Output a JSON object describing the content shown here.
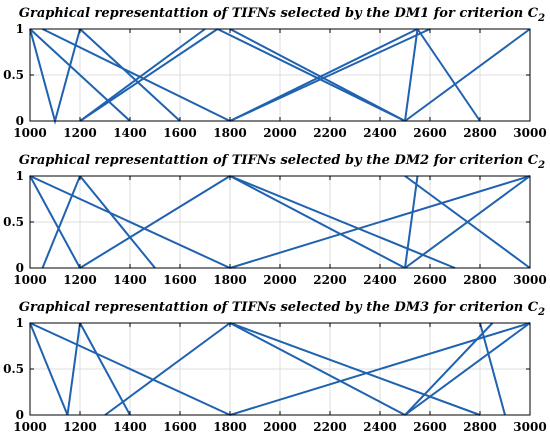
{
  "chart_data": [
    {
      "type": "line",
      "title": "Graphical representattion of TIFNs selected by the DM1 for criterion C",
      "title_subscript": "2",
      "xlim": [
        1000,
        3000
      ],
      "ylim": [
        0,
        1
      ],
      "xticks": [
        1000,
        1200,
        1400,
        1600,
        1800,
        2000,
        2200,
        2400,
        2600,
        2800,
        3000
      ],
      "yticks": [
        0,
        0.5,
        1
      ],
      "grid": true,
      "line_color": "#1f62b0",
      "series": [
        {
          "x": [
            1000,
            1100,
            1200
          ],
          "y": [
            1,
            0,
            1
          ]
        },
        {
          "x": [
            1200,
            1700
          ],
          "y": [
            0,
            1
          ]
        },
        {
          "x": [
            1200,
            1600
          ],
          "y": [
            1,
            0
          ]
        },
        {
          "x": [
            1050,
            1800
          ],
          "y": [
            1,
            0
          ]
        },
        {
          "x": [
            1200,
            1750
          ],
          "y": [
            0,
            1
          ]
        },
        {
          "x": [
            1000,
            1400
          ],
          "y": [
            1,
            0
          ]
        },
        {
          "x": [
            1800,
            2600
          ],
          "y": [
            0,
            1
          ]
        },
        {
          "x": [
            1800,
            2500
          ],
          "y": [
            1,
            0
          ]
        },
        {
          "x": [
            1750,
            2500
          ],
          "y": [
            1,
            0
          ]
        },
        {
          "x": [
            2500,
            3000
          ],
          "y": [
            0,
            1
          ]
        },
        {
          "x": [
            1800,
            2550
          ],
          "y": [
            0,
            1
          ]
        },
        {
          "x": [
            2550,
            2800
          ],
          "y": [
            1,
            0
          ]
        },
        {
          "x": [
            2500,
            2550
          ],
          "y": [
            0,
            1
          ]
        }
      ]
    },
    {
      "type": "line",
      "title": "Graphical representattion of TIFNs selected by the DM2 for criterion C",
      "title_subscript": "2",
      "xlim": [
        1000,
        3000
      ],
      "ylim": [
        0,
        1
      ],
      "xticks": [
        1000,
        1200,
        1400,
        1600,
        1800,
        2000,
        2200,
        2400,
        2600,
        2800,
        3000
      ],
      "yticks": [
        0,
        0.5,
        1
      ],
      "grid": true,
      "line_color": "#1f62b0",
      "series": [
        {
          "x": [
            1000,
            1200
          ],
          "y": [
            1,
            0
          ]
        },
        {
          "x": [
            1050,
            1200
          ],
          "y": [
            0,
            1
          ]
        },
        {
          "x": [
            1200,
            1500
          ],
          "y": [
            1,
            0
          ]
        },
        {
          "x": [
            1000,
            1800
          ],
          "y": [
            1,
            0
          ]
        },
        {
          "x": [
            1200,
            1800
          ],
          "y": [
            0,
            1
          ]
        },
        {
          "x": [
            1800,
            2500
          ],
          "y": [
            1,
            0
          ]
        },
        {
          "x": [
            1800,
            2700
          ],
          "y": [
            1,
            0
          ]
        },
        {
          "x": [
            1800,
            3000
          ],
          "y": [
            0,
            1
          ]
        },
        {
          "x": [
            2500,
            3000
          ],
          "y": [
            0,
            1
          ]
        },
        {
          "x": [
            2500,
            3000
          ],
          "y": [
            1,
            0
          ]
        },
        {
          "x": [
            2500,
            2550
          ],
          "y": [
            0,
            1
          ]
        }
      ]
    },
    {
      "type": "line",
      "title": "Graphical representattion of TIFNs selected by the DM3 for criterion C",
      "title_subscript": "2",
      "xlim": [
        1000,
        3000
      ],
      "ylim": [
        0,
        1
      ],
      "xticks": [
        1000,
        1200,
        1400,
        1600,
        1800,
        2000,
        2200,
        2400,
        2600,
        2800,
        3000
      ],
      "yticks": [
        0,
        0.5,
        1
      ],
      "grid": true,
      "line_color": "#1f62b0",
      "series": [
        {
          "x": [
            1000,
            1150
          ],
          "y": [
            1,
            0
          ]
        },
        {
          "x": [
            1150,
            1200
          ],
          "y": [
            0,
            1
          ]
        },
        {
          "x": [
            1200,
            1400
          ],
          "y": [
            1,
            0
          ]
        },
        {
          "x": [
            1000,
            1800
          ],
          "y": [
            1,
            0
          ]
        },
        {
          "x": [
            1300,
            1800
          ],
          "y": [
            0,
            1
          ]
        },
        {
          "x": [
            1800,
            2500
          ],
          "y": [
            1,
            0
          ]
        },
        {
          "x": [
            1800,
            2800
          ],
          "y": [
            1,
            0
          ]
        },
        {
          "x": [
            2800,
            2900
          ],
          "y": [
            1,
            0
          ]
        },
        {
          "x": [
            1800,
            3000
          ],
          "y": [
            0,
            1
          ]
        },
        {
          "x": [
            2500,
            3000
          ],
          "y": [
            0,
            1
          ]
        },
        {
          "x": [
            2500,
            2850
          ],
          "y": [
            0,
            1
          ]
        }
      ]
    }
  ]
}
